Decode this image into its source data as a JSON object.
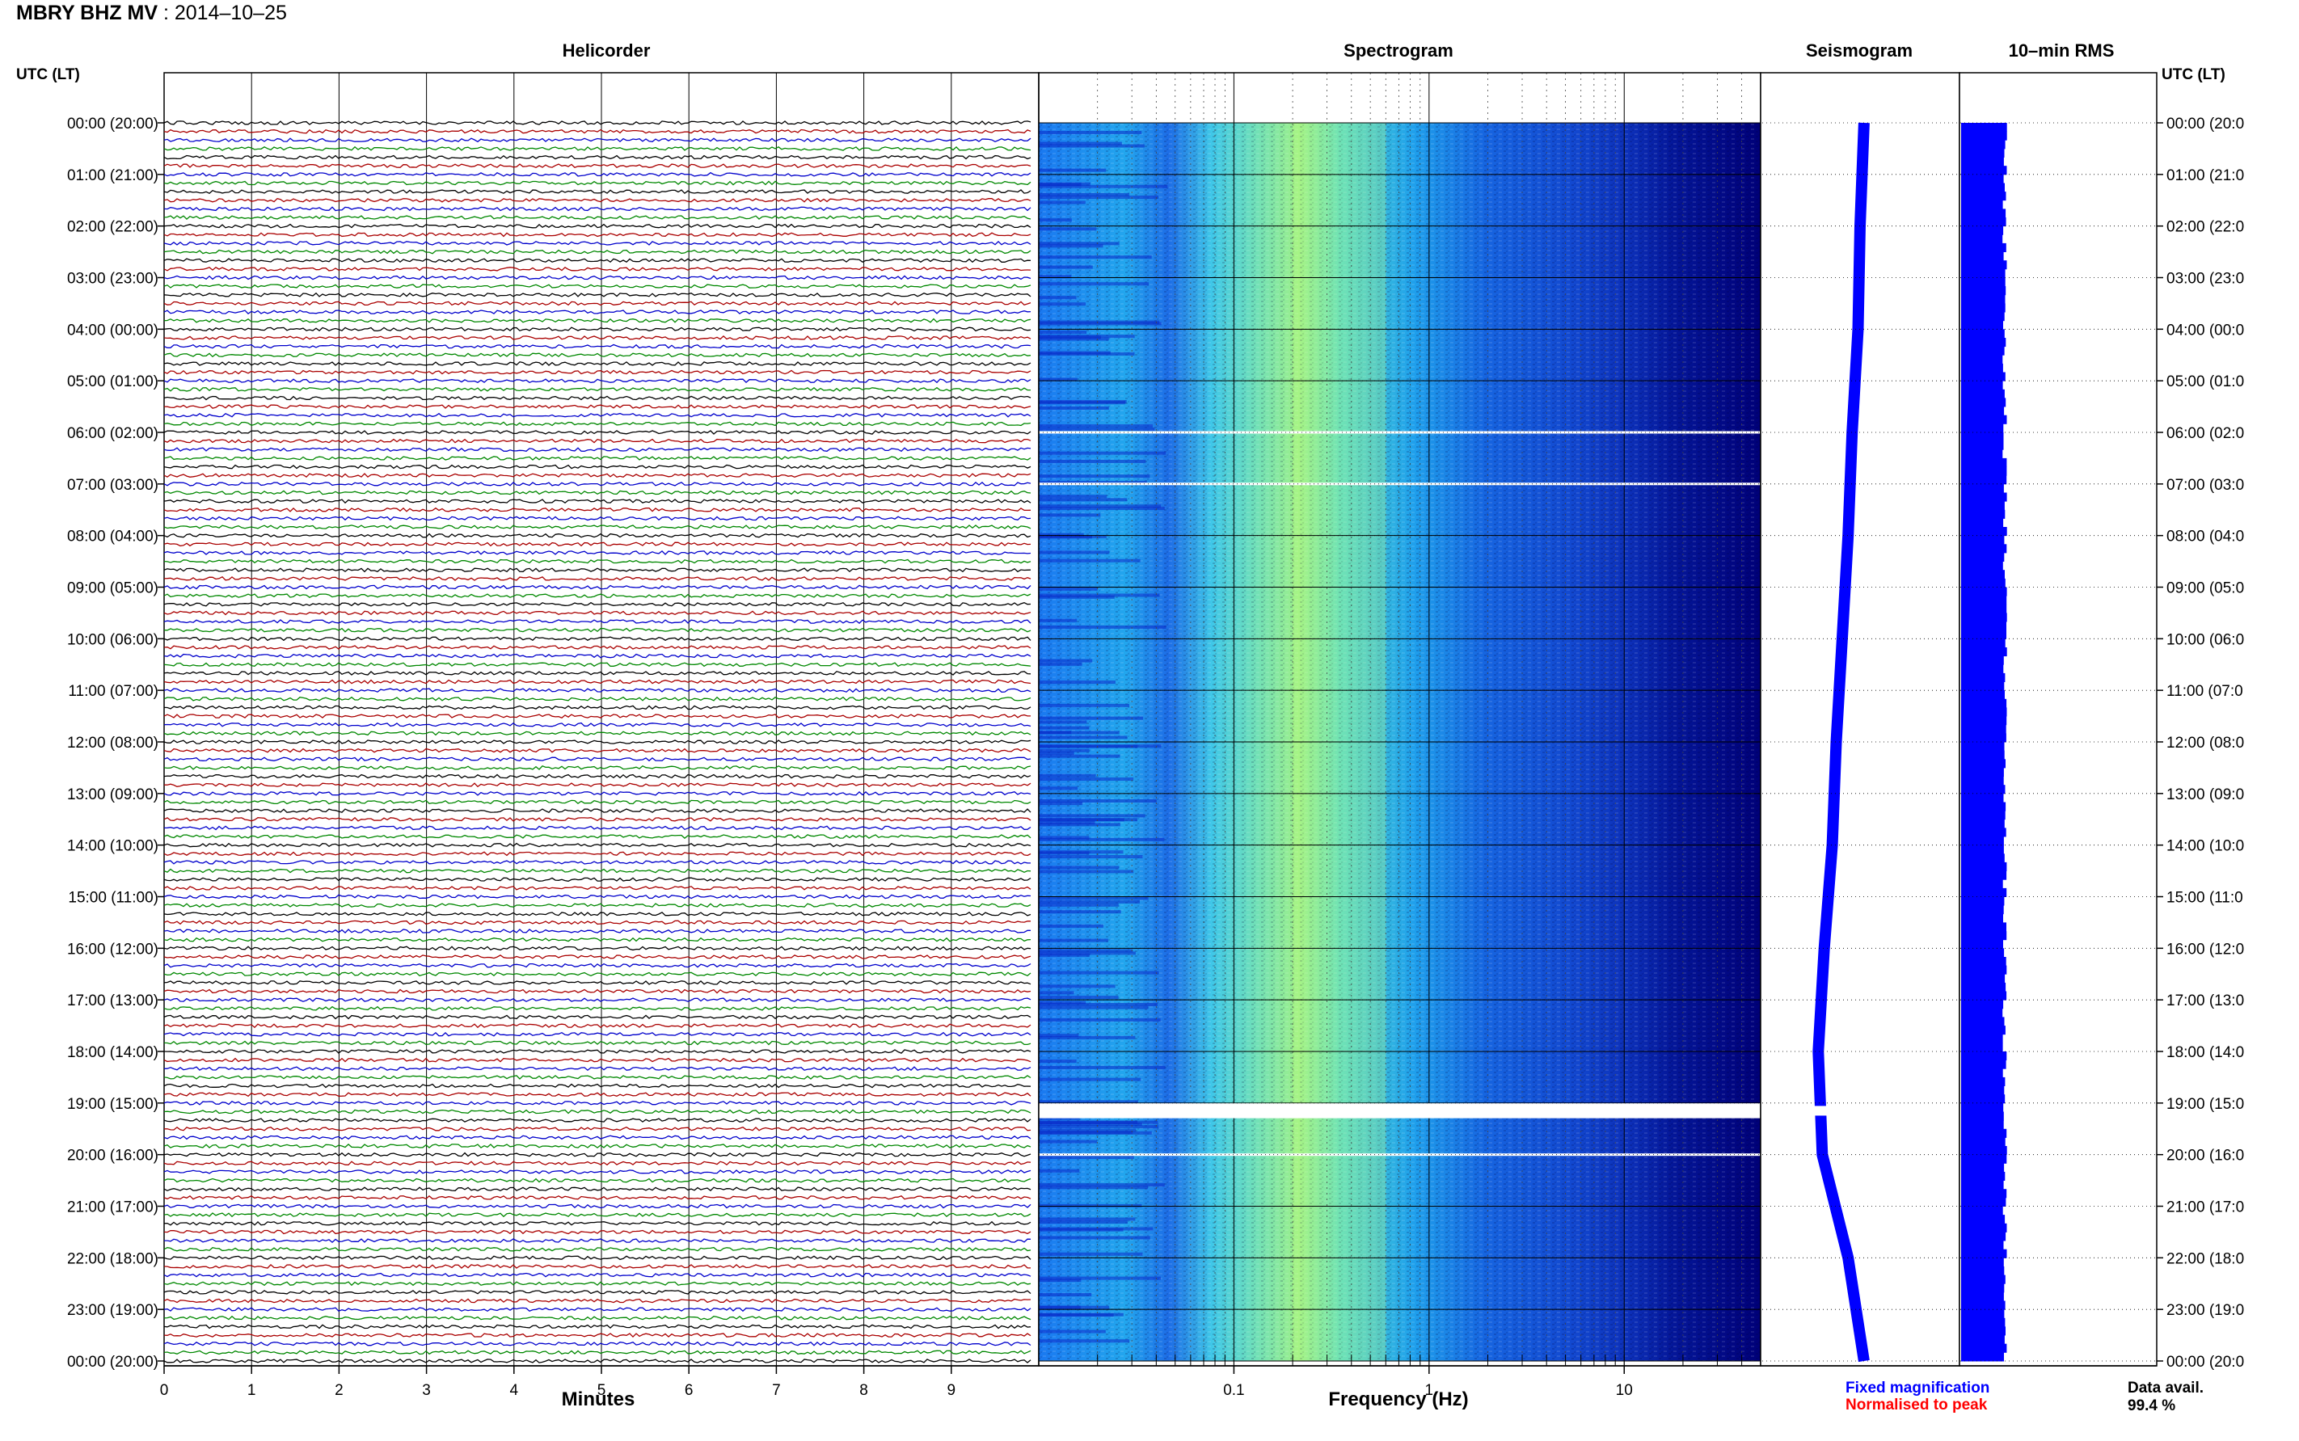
{
  "header": {
    "station": "MBRY BHZ MV",
    "separator": " : ",
    "date": "2014–10–25"
  },
  "panels": {
    "helicorder": "Helicorder",
    "spectrogram": "Spectrogram",
    "seismogram": "Seismogram",
    "rms": "10–min RMS"
  },
  "axes": {
    "left_header": "UTC (LT)",
    "right_header": "UTC (LT)",
    "helicorder_xlabel": "Minutes",
    "spectrogram_xlabel": "Frequency (Hz)"
  },
  "legend": {
    "fixed": "Fixed magnification",
    "normalised": "Normalised to peak",
    "fixed_color": "#0000ff",
    "normalised_color": "#ff0000"
  },
  "availability": {
    "label": "Data avail.",
    "value": "99.4 %"
  },
  "colors": {
    "trace_cycle": [
      "#000000",
      "#aa0000",
      "#0000cc",
      "#008800"
    ],
    "spectrum_dark": "#00007f",
    "spectrum_mid": "#0066ff",
    "spectrum_hot": "#7fff7f",
    "seismo": "#0000ff"
  },
  "chart_data": {
    "type": "heatmap",
    "time_labels_left": [
      "00:00 (20:00)",
      "01:00 (21:00)",
      "02:00 (22:00)",
      "03:00 (23:00)",
      "04:00 (00:00)",
      "05:00 (01:00)",
      "06:00 (02:00)",
      "07:00 (03:00)",
      "08:00 (04:00)",
      "09:00 (05:00)",
      "10:00 (06:00)",
      "11:00 (07:00)",
      "12:00 (08:00)",
      "13:00 (09:00)",
      "14:00 (10:00)",
      "15:00 (11:00)",
      "16:00 (12:00)",
      "17:00 (13:00)",
      "18:00 (14:00)",
      "19:00 (15:00)",
      "20:00 (16:00)",
      "21:00 (17:00)",
      "22:00 (18:00)",
      "23:00 (19:00)",
      "00:00 (20:00)"
    ],
    "time_labels_right": [
      "00:00 (20:0",
      "01:00 (21:0",
      "02:00 (22:0",
      "03:00 (23:0",
      "04:00 (00:0",
      "05:00 (01:0",
      "06:00 (02:0",
      "07:00 (03:0",
      "08:00 (04:0",
      "09:00 (05:0",
      "10:00 (06:0",
      "11:00 (07:0",
      "12:00 (08:0",
      "13:00 (09:0",
      "14:00 (10:0",
      "15:00 (11:0",
      "16:00 (12:0",
      "17:00 (13:0",
      "18:00 (14:0",
      "19:00 (15:0",
      "20:00 (16:0",
      "21:00 (17:0",
      "22:00 (18:0",
      "23:00 (19:0",
      "00:00 (20:0"
    ],
    "helicorder": {
      "xlim": [
        0,
        10
      ],
      "minute_ticks": [
        "0",
        "1",
        "2",
        "3",
        "4",
        "5",
        "6",
        "7",
        "8",
        "9"
      ],
      "lines_per_hour": 6,
      "hours": 24,
      "gap_hours": [
        19.8
      ]
    },
    "spectrogram": {
      "xscale": "log",
      "xlim": [
        0.01,
        50
      ],
      "freq_ticks": [
        {
          "value": 0.1,
          "label": "0.1"
        },
        {
          "value": 1,
          "label": "1"
        },
        {
          "value": 10,
          "label": "10"
        }
      ],
      "peak_band_hz": [
        0.2,
        0.6
      ],
      "gap_hours": [
        6.0,
        7.0,
        19.1,
        19.2,
        20.0
      ]
    },
    "seismogram": {
      "profile_times_h": [
        0,
        2,
        4,
        6,
        8,
        10,
        12,
        14,
        16,
        18,
        20,
        22,
        24
      ],
      "profile_values": [
        0.52,
        0.5,
        0.49,
        0.46,
        0.44,
        0.41,
        0.38,
        0.36,
        0.32,
        0.29,
        0.31,
        0.44,
        0.52
      ]
    },
    "rms": {
      "bar_level": 0.95
    }
  }
}
